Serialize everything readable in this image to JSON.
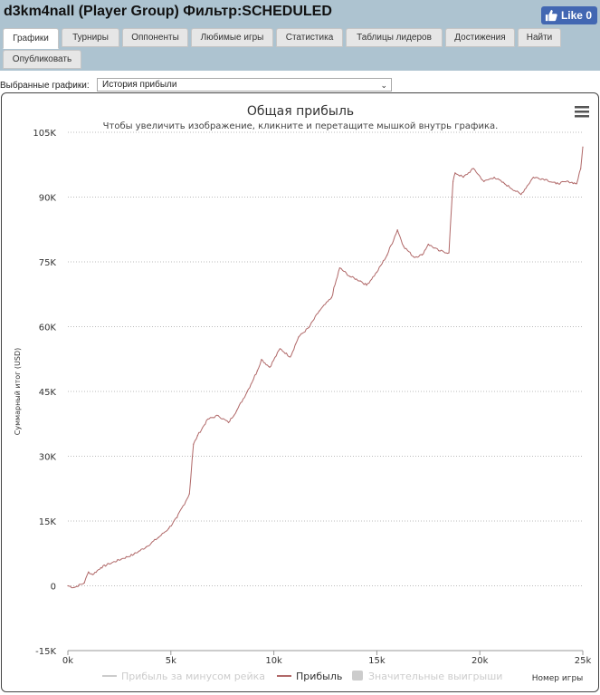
{
  "header": {
    "title": "d3km4nall (Player Group) Фильтр:SCHEDULED",
    "like_label": "Like 0"
  },
  "tabs": [
    {
      "label": "Графики",
      "active": true
    },
    {
      "label": "Турниры",
      "active": false
    },
    {
      "label": "Оппоненты",
      "active": false
    },
    {
      "label": "Любимые игры",
      "active": false
    },
    {
      "label": "Статистика",
      "active": false
    },
    {
      "label": "Таблицы лидеров",
      "active": false
    },
    {
      "label": "Достижения",
      "active": false
    },
    {
      "label": "Найти",
      "active": false
    },
    {
      "label": "Опубликовать",
      "active": false
    }
  ],
  "chart_selector": {
    "label": "Выбранные графики:",
    "value": "История прибыли"
  },
  "chart_data": {
    "type": "line",
    "title": "Общая прибыль",
    "subtitle": "Чтобы увеличить изображение, кликните и перетащите мышкой внутрь графика.",
    "xlabel": "Номер игры",
    "ylabel": "Суммарный итог (USD)",
    "xlim": [
      0,
      25000
    ],
    "ylim": [
      -15000,
      105000
    ],
    "x_ticks": [
      "0k",
      "5k",
      "10k",
      "15k",
      "20k",
      "25k"
    ],
    "y_ticks": [
      "105K",
      "90K",
      "75K",
      "60K",
      "45K",
      "30K",
      "15K",
      "0",
      "-15K"
    ],
    "grid": "horizontal dotted",
    "legend": {
      "placement": "bottom",
      "items": [
        {
          "label": "Прибыль за минусом рейка",
          "color": "#cccccc",
          "visible": false
        },
        {
          "label": "Прибыль",
          "color": "#b06868",
          "visible": true
        },
        {
          "label": "Значительные выигрыши",
          "color": "#cccccc",
          "visible": false
        }
      ]
    },
    "series": [
      {
        "name": "Прибыль",
        "color": "#b06868",
        "x": [
          0,
          300,
          800,
          1000,
          1200,
          1600,
          2000,
          2600,
          3200,
          3800,
          4400,
          4900,
          5300,
          5900,
          6100,
          6300,
          6800,
          7300,
          7800,
          8200,
          8700,
          9200,
          9400,
          9800,
          10300,
          10800,
          11200,
          11700,
          12200,
          12800,
          13200,
          13700,
          14200,
          14500,
          15000,
          15500,
          16000,
          16300,
          16800,
          17200,
          17500,
          18000,
          18500,
          18700,
          18800,
          19200,
          19700,
          20200,
          20700,
          21200,
          22000,
          22600,
          23200,
          23700,
          24300,
          24700,
          24900,
          25000
        ],
        "y": [
          0,
          -400,
          700,
          3200,
          2600,
          4200,
          5100,
          6200,
          7300,
          9000,
          11200,
          13300,
          15800,
          21300,
          32800,
          34800,
          38600,
          39400,
          37800,
          40600,
          44900,
          49800,
          52400,
          50600,
          54900,
          53000,
          57600,
          59800,
          63600,
          66700,
          73600,
          71600,
          70600,
          69600,
          72600,
          76600,
          82400,
          78600,
          76100,
          76600,
          79100,
          77600,
          77100,
          93600,
          95600,
          94600,
          96600,
          93600,
          94600,
          93100,
          90600,
          94600,
          94100,
          93100,
          93600,
          93100,
          96600,
          101600
        ]
      }
    ]
  }
}
